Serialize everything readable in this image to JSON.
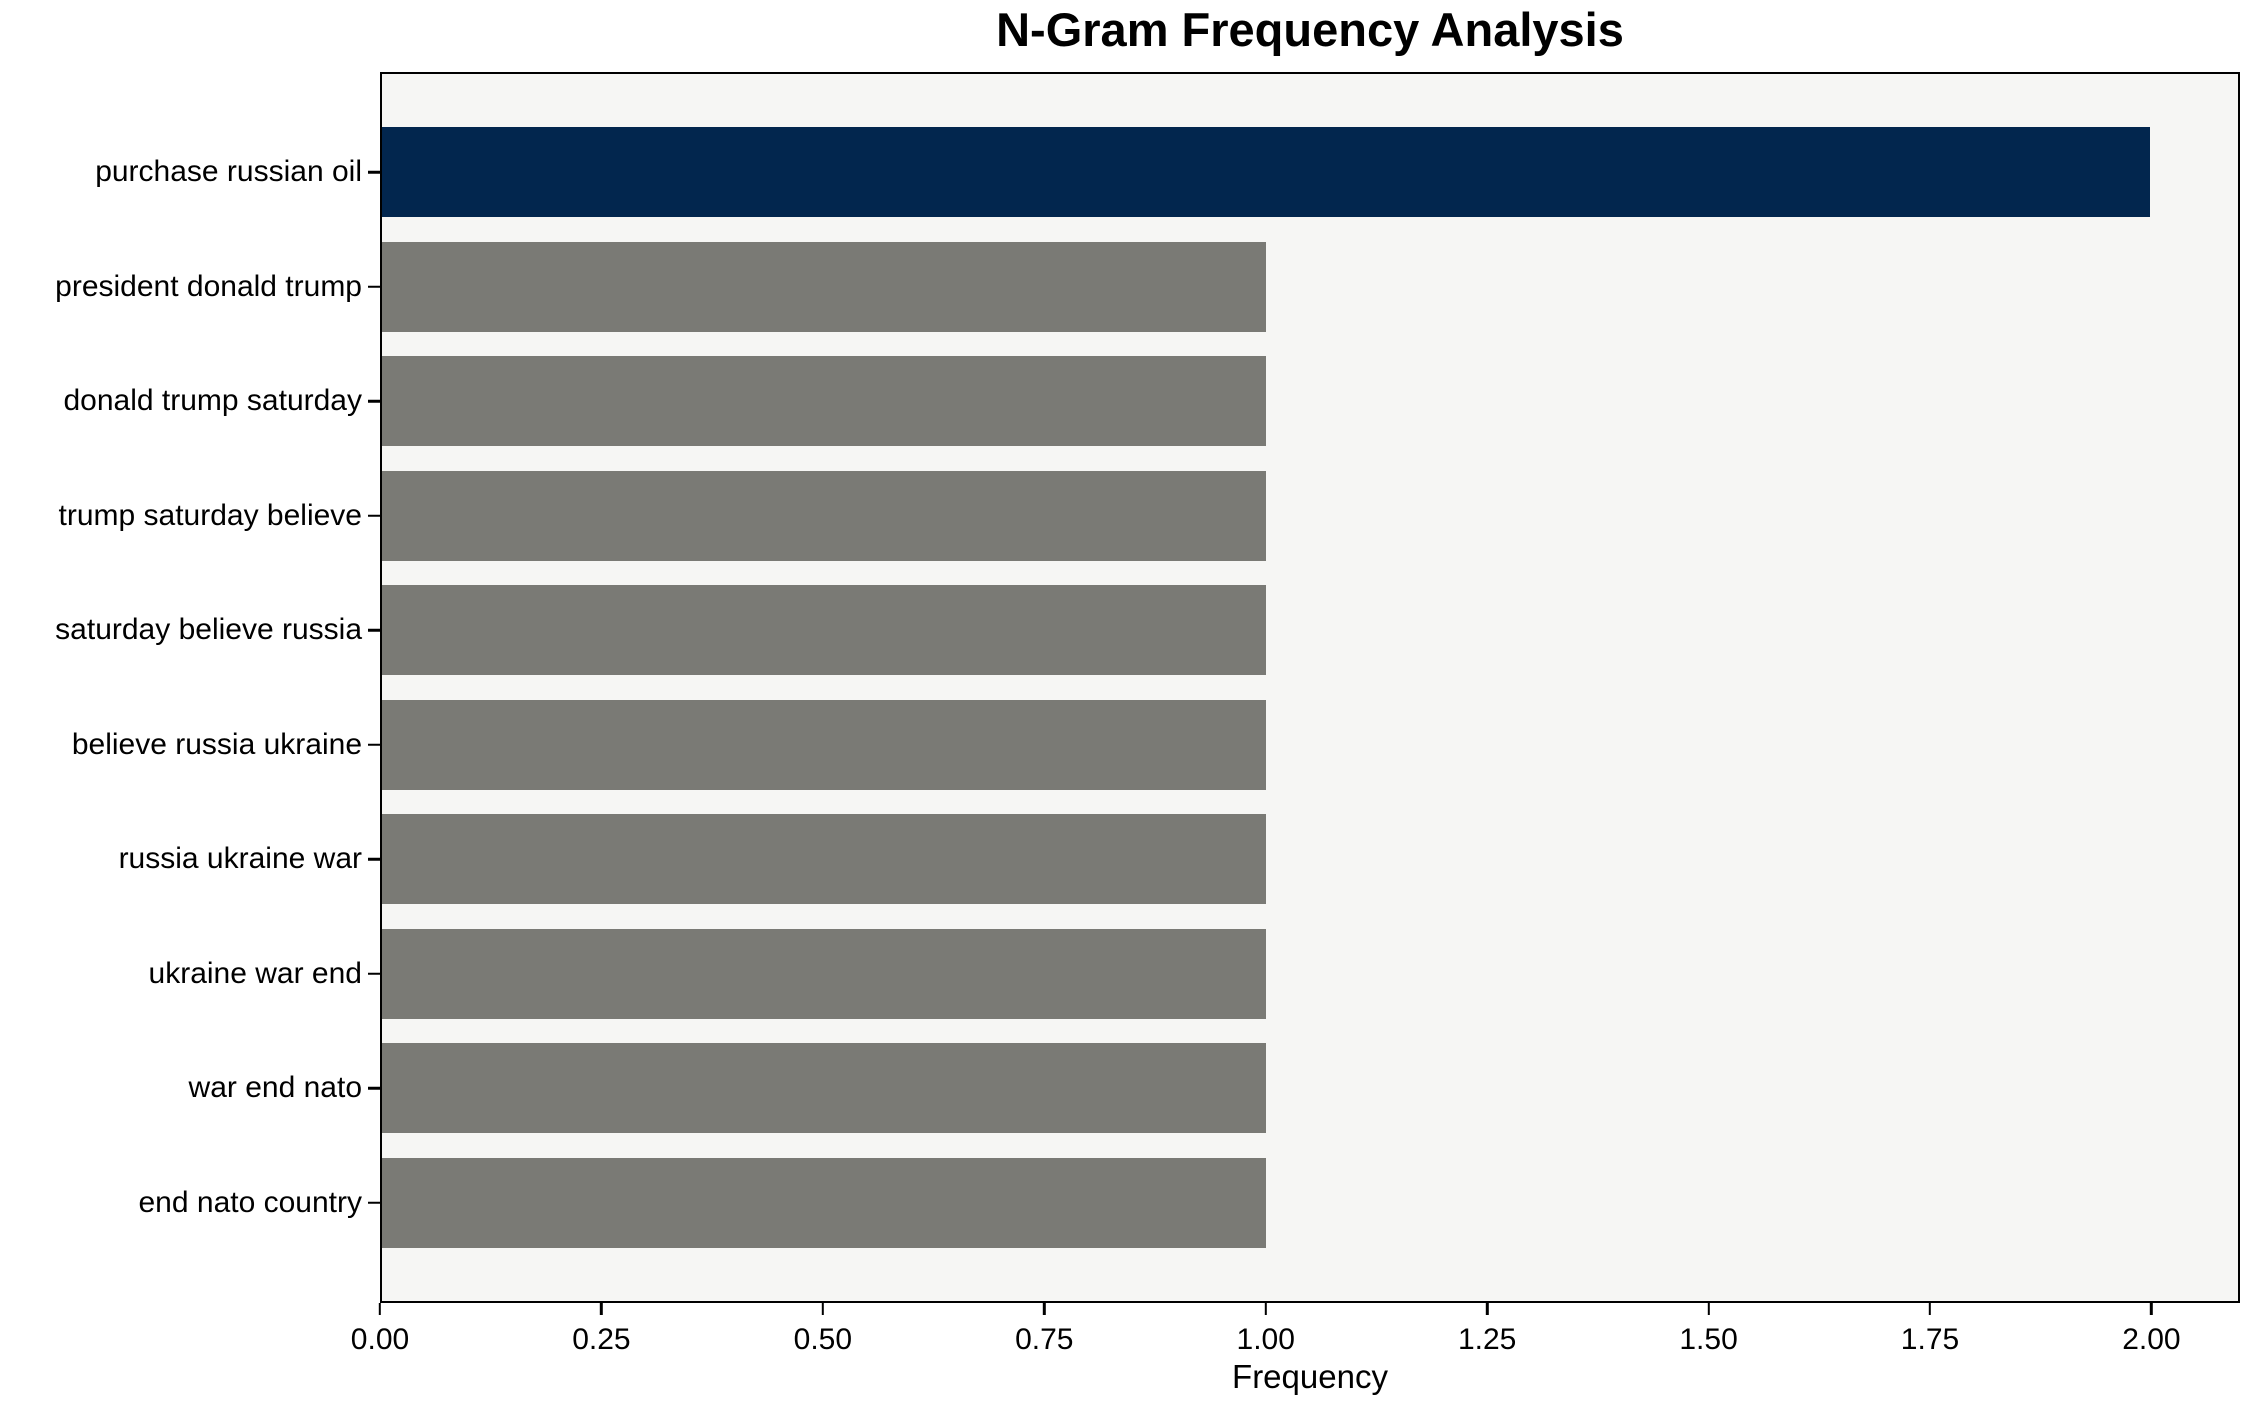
{
  "chart_data": {
    "type": "bar",
    "orientation": "horizontal",
    "title": "N-Gram Frequency Analysis",
    "xlabel": "Frequency",
    "ylabel": "",
    "categories": [
      "purchase russian oil",
      "president donald trump",
      "donald trump saturday",
      "trump saturday believe",
      "saturday believe russia",
      "believe russia ukraine",
      "russia ukraine war",
      "ukraine war end",
      "war end nato",
      "end nato country"
    ],
    "values": [
      2.0,
      1.0,
      1.0,
      1.0,
      1.0,
      1.0,
      1.0,
      1.0,
      1.0,
      1.0
    ],
    "bar_colors": [
      "#02264e",
      "#7a7a75",
      "#7a7a75",
      "#7a7a75",
      "#7a7a75",
      "#7a7a75",
      "#7a7a75",
      "#7a7a75",
      "#7a7a75",
      "#7a7a75"
    ],
    "colors": {
      "highlight": "#02264e",
      "default": "#7a7a75",
      "plot_background": "#f6f6f4",
      "figure_background": "#ffffff",
      "spine": "#000000",
      "text": "#000000"
    },
    "xlim": [
      0,
      2.1
    ],
    "x_tick_values": [
      0.0,
      0.25,
      0.5,
      0.75,
      1.0,
      1.25,
      1.5,
      1.75,
      2.0
    ],
    "x_tick_labels": [
      "0.00",
      "0.25",
      "0.50",
      "0.75",
      "1.00",
      "1.25",
      "1.50",
      "1.75",
      "2.00"
    ],
    "grid": false,
    "legend": null
  }
}
